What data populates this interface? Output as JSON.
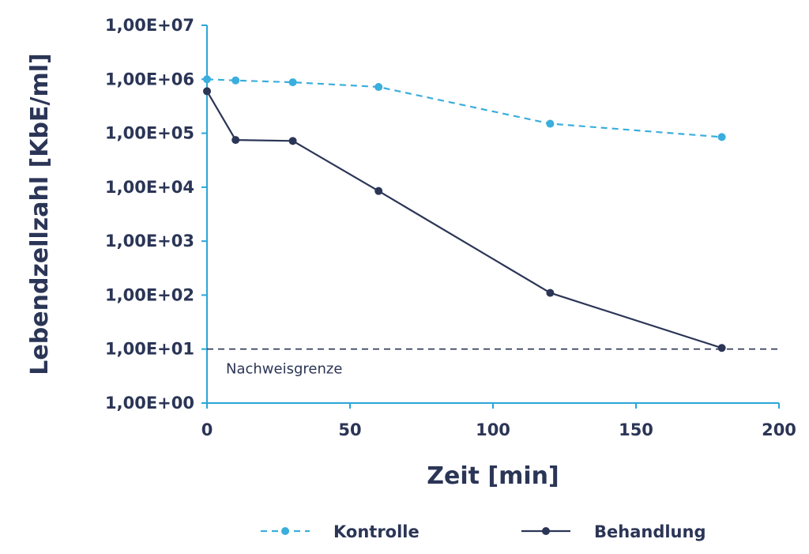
{
  "chart_data": {
    "type": "line",
    "title": "",
    "xlabel": "Zeit [min]",
    "ylabel": "Lebendzellzahl [KbE/ml]",
    "xlim": [
      0,
      200
    ],
    "x_ticks": [
      "0",
      "50",
      "100",
      "150",
      "200"
    ],
    "y_scale": "log",
    "ylim": [
      1,
      10000000
    ],
    "y_ticks": [
      "1,00E+00",
      "1,00E+01",
      "1,00E+02",
      "1,00E+03",
      "1,00E+04",
      "1,00E+05",
      "1,00E+06",
      "1,00E+07"
    ],
    "grid": false,
    "legend_position": "bottom",
    "series": [
      {
        "name": "Kontrolle",
        "color": "#3aaedc",
        "line_style": "dashed",
        "x": [
          0,
          10,
          30,
          60,
          120,
          180
        ],
        "y": [
          1000000,
          950000,
          880000,
          720000,
          150000,
          85000
        ]
      },
      {
        "name": "Behandlung",
        "color": "#2b3556",
        "line_style": "solid",
        "x": [
          0,
          10,
          30,
          60,
          120,
          180
        ],
        "y": [
          600000,
          75000,
          72000,
          8500,
          110,
          10.5
        ]
      }
    ],
    "reference_line": {
      "label": "Nachweisgrenze",
      "y": 10,
      "color": "#2b3556",
      "line_style": "dashed"
    }
  }
}
